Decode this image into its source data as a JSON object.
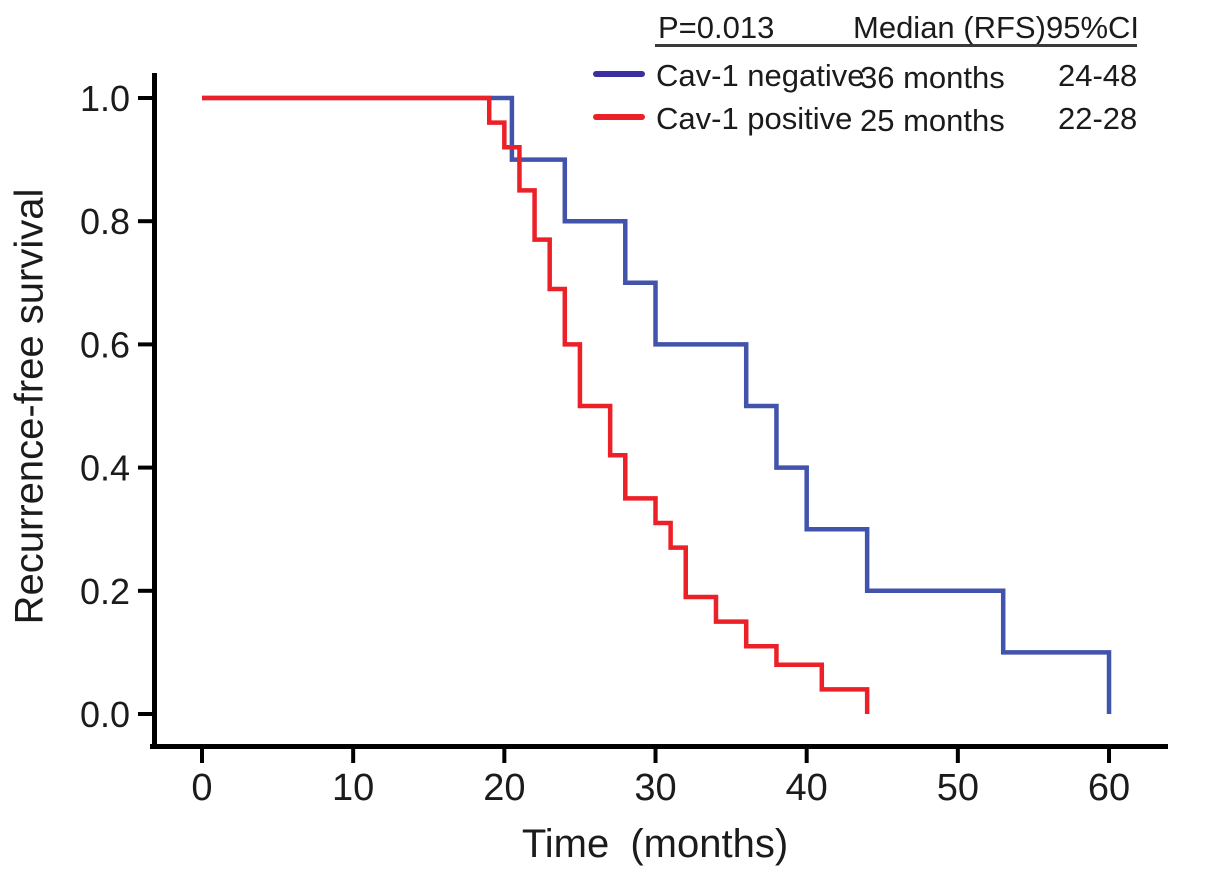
{
  "figure": {
    "x_axis_label": "Time (months)",
    "y_axis_label": "Recurrence-free survival"
  },
  "legend": {
    "p_value": "P=0.013",
    "col_median": "Median (RFS)",
    "col_ci": "95%CI",
    "rows": [
      {
        "name": "Cav-1 negative",
        "median": "36 months",
        "ci": "24-48",
        "color": "#3A2FA0"
      },
      {
        "name": "Cav-1 positive",
        "median": "25 months",
        "ci": "22-28",
        "color": "#EC2127"
      }
    ]
  },
  "chart_data": {
    "type": "line",
    "subtype": "kaplan-meier-step",
    "title": "",
    "xlabel": "Time (months)",
    "ylabel": "Recurrence-free survival",
    "xlim": [
      0,
      60
    ],
    "ylim": [
      0.0,
      1.0
    ],
    "grid": false,
    "legend_position": "top-right",
    "p_value": 0.013,
    "x_ticks": [
      0,
      10,
      20,
      30,
      40,
      50,
      60
    ],
    "x_tick_labels": [
      "0",
      "10",
      "20",
      "30",
      "40",
      "50",
      "60"
    ],
    "y_ticks": [
      0.0,
      0.2,
      0.4,
      0.6,
      0.8,
      1.0
    ],
    "y_tick_labels": [
      "0.0",
      "0.2",
      "0.4",
      "0.6",
      "0.8",
      "1.0"
    ],
    "series": [
      {
        "id": "cav1-negative",
        "name": "Cav-1 negative",
        "color": "#4253AC",
        "median_rfs_months": 36,
        "ci_95": "24-48",
        "points": [
          [
            0,
            1.0
          ],
          [
            20.5,
            0.9
          ],
          [
            24,
            0.8
          ],
          [
            28,
            0.7
          ],
          [
            30,
            0.6
          ],
          [
            36,
            0.5
          ],
          [
            38,
            0.4
          ],
          [
            40,
            0.3
          ],
          [
            44,
            0.2
          ],
          [
            53,
            0.1
          ],
          [
            60,
            0.0
          ]
        ]
      },
      {
        "id": "cav1-positive",
        "name": "Cav-1 positive",
        "color": "#EC2127",
        "median_rfs_months": 25,
        "ci_95": "22-28",
        "points": [
          [
            0,
            1.0
          ],
          [
            19,
            0.96
          ],
          [
            20,
            0.92
          ],
          [
            21,
            0.85
          ],
          [
            22,
            0.77
          ],
          [
            23,
            0.69
          ],
          [
            24,
            0.6
          ],
          [
            25,
            0.5
          ],
          [
            27,
            0.42
          ],
          [
            28,
            0.35
          ],
          [
            30,
            0.31
          ],
          [
            31,
            0.27
          ],
          [
            32,
            0.19
          ],
          [
            34,
            0.15
          ],
          [
            36,
            0.11
          ],
          [
            38,
            0.08
          ],
          [
            41,
            0.04
          ],
          [
            44,
            0.0
          ]
        ]
      }
    ]
  }
}
